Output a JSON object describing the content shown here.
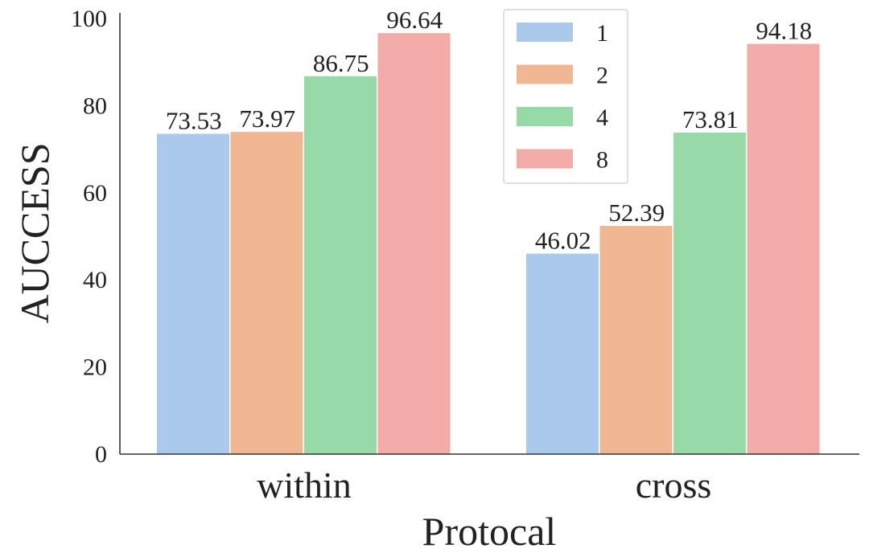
{
  "chart_data": {
    "type": "bar",
    "categories": [
      "within",
      "cross"
    ],
    "series": [
      {
        "name": "1",
        "values": [
          73.53,
          46.02
        ],
        "color": "#abc9ea"
      },
      {
        "name": "2",
        "values": [
          73.97,
          52.39
        ],
        "color": "#efb792"
      },
      {
        "name": "4",
        "values": [
          86.75,
          73.81
        ],
        "color": "#98daa7"
      },
      {
        "name": "8",
        "values": [
          96.64,
          94.18
        ],
        "color": "#f3aba8"
      }
    ],
    "value_labels": [
      [
        "73.53",
        "46.02"
      ],
      [
        "73.97",
        "52.39"
      ],
      [
        "86.75",
        "73.81"
      ],
      [
        "96.64",
        "94.18"
      ]
    ],
    "xlabel": "Protocal",
    "ylabel": "AUCCESS",
    "ylim": [
      0,
      100
    ],
    "yticks": [
      0,
      20,
      40,
      60,
      80,
      100
    ],
    "legend_position": "top-center",
    "grid": false
  }
}
